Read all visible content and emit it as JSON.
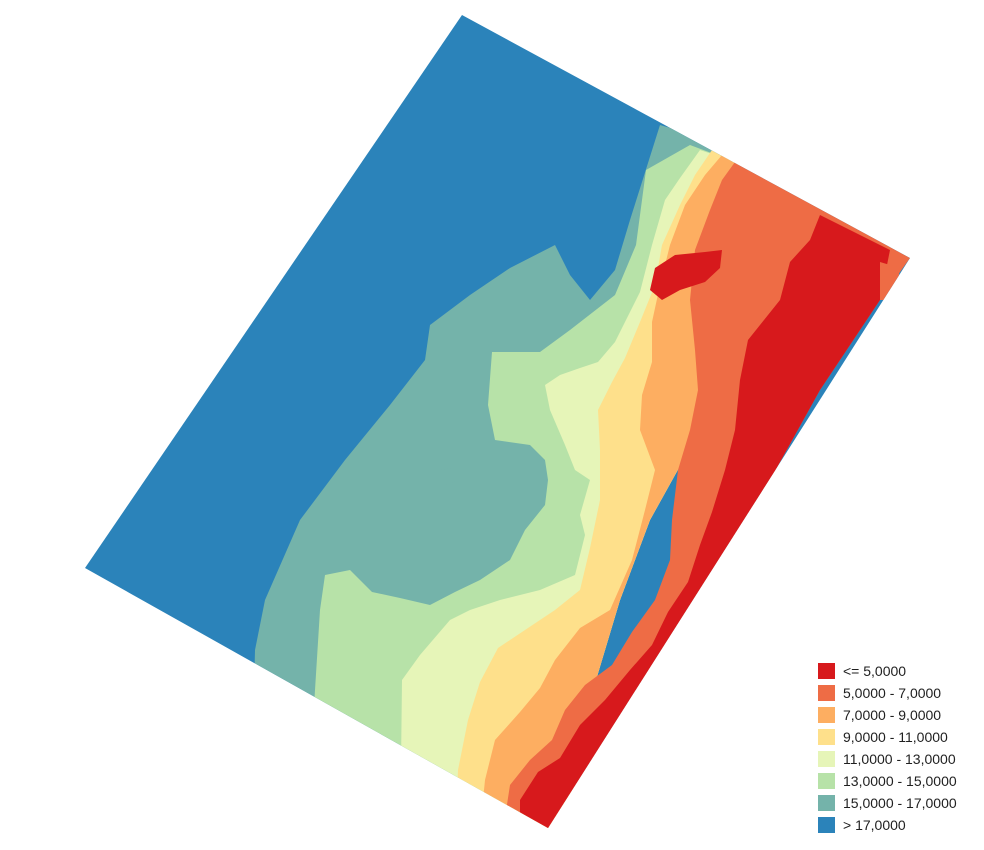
{
  "map": {
    "type": "classified-raster",
    "palette": [
      "#d7191c",
      "#ee6c45",
      "#fdae61",
      "#fee08b",
      "#e6f5b8",
      "#b7e2a8",
      "#74b3aa",
      "#2b83ba"
    ]
  },
  "legend": {
    "items": [
      {
        "label": "<= 5,0000",
        "color": "#d7191c"
      },
      {
        "label": "5,0000 - 7,0000",
        "color": "#ee6c45"
      },
      {
        "label": "7,0000 - 9,0000",
        "color": "#fdae61"
      },
      {
        "label": "9,0000 - 11,0000",
        "color": "#fee08b"
      },
      {
        "label": "11,0000 - 13,0000",
        "color": "#e6f5b8"
      },
      {
        "label": "13,0000 - 15,0000",
        "color": "#b7e2a8"
      },
      {
        "label": "15,0000 - 17,0000",
        "color": "#74b3aa"
      },
      {
        "label": "> 17,0000",
        "color": "#2b83ba"
      }
    ]
  }
}
